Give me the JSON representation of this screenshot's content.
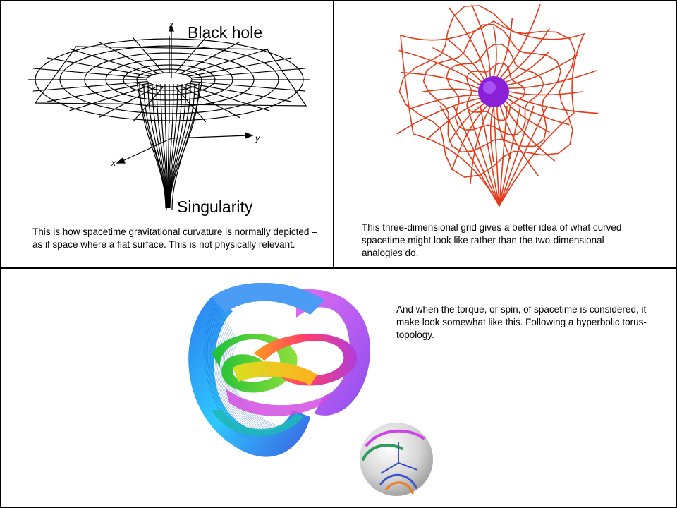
{
  "panel_top_left": {
    "title": "Black hole",
    "bottom_label": "Singularity",
    "axes": {
      "z": "z",
      "y": "y",
      "x": "x"
    },
    "caption_line1": "This is how spacetime gravitational curvature is normally depicted –",
    "caption_line2": "as if space where a flat surface. This is not physically relevant."
  },
  "panel_top_right": {
    "caption_line1": "This three-dimensional grid gives a better idea of what curved",
    "caption_line2": "spacetime might look like  rather than the two-dimensional",
    "caption_line3": "analogies do."
  },
  "panel_bottom": {
    "caption_line1": "And when the torque, or spin, of spacetime is considered, it",
    "caption_line2": "make look somewhat like this. Following a hyperbolic torus-",
    "caption_line3": "topology."
  },
  "colors": {
    "grid_red": "#e23b1a",
    "core_purple": "#8a1fd8",
    "border": "#000000"
  }
}
